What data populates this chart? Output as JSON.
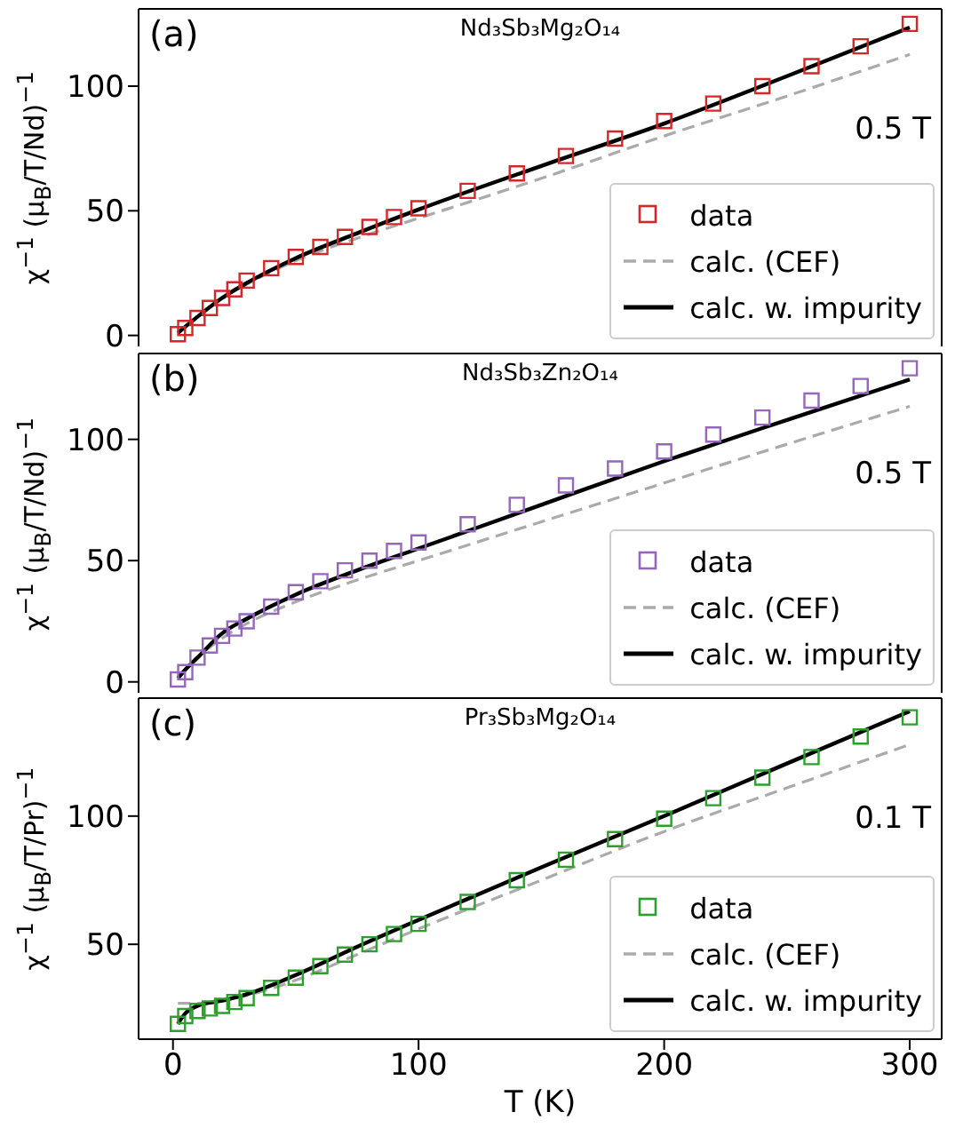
{
  "chart_data": [
    {
      "type": "scatter",
      "title": "Nd₃Sb₃Mg₂O₁₄",
      "ylabel": "χ$^{−1}$ (μ$_{B}$/T/Nd)$^{−1}$",
      "annotations": [
        "(a)",
        "0.5 T"
      ],
      "xlim": [
        -14,
        313
      ],
      "xticks": [
        0,
        100,
        200,
        300
      ],
      "ylim": [
        -4.4,
        131
      ],
      "yticks": [
        0,
        50,
        100
      ],
      "tick_labels": "y",
      "legend": "bottom right",
      "series": [
        {
          "name": "data",
          "marker": "square",
          "color": "#d62728",
          "x": [
            2,
            5,
            10,
            15,
            20,
            25,
            30,
            40,
            50,
            60,
            70,
            80,
            90,
            100,
            120,
            140,
            160,
            180,
            200,
            220,
            240,
            260,
            280,
            300
          ],
          "values": [
            0.5,
            3,
            7,
            11,
            15,
            18.5,
            22,
            27,
            31.5,
            35.5,
            39.5,
            43.5,
            47.5,
            51,
            58,
            65,
            72,
            79,
            86,
            93,
            100,
            108,
            116,
            125
          ]
        },
        {
          "name": "calc. (CEF)",
          "type": "line",
          "line_style": "dashed",
          "color": "#aaaaaa",
          "x": [
            2,
            5,
            10,
            20,
            30,
            50,
            75,
            100,
            150,
            200,
            250,
            300
          ],
          "values": [
            1,
            3.5,
            7.5,
            15,
            20.5,
            30,
            39,
            47,
            63,
            80,
            96,
            112.7
          ]
        },
        {
          "name": "calc. w. impurity",
          "type": "line",
          "line_style": "solid",
          "color": "#000000",
          "x": [
            2,
            5,
            10,
            20,
            30,
            50,
            75,
            100,
            150,
            200,
            250,
            300
          ],
          "values": [
            1,
            3.5,
            7.5,
            15,
            21,
            31,
            41,
            50.5,
            68,
            85,
            104,
            123.5
          ]
        }
      ]
    },
    {
      "type": "scatter",
      "title": "Nd₃Sb₃Zn₂O₁₄",
      "ylabel": "χ$^{−1}$ (μ$_{B}$/T/Nd)$^{−1}$",
      "annotations": [
        "(b)",
        "0.5 T"
      ],
      "xlim": [
        -14,
        313
      ],
      "xticks": [
        0,
        100,
        200,
        300
      ],
      "ylim": [
        -4.5,
        135.4
      ],
      "yticks": [
        0,
        50,
        100
      ],
      "tick_labels": "y",
      "legend": "bottom right",
      "series": [
        {
          "name": "data",
          "marker": "square",
          "color": "#9467bd",
          "x": [
            2,
            5,
            10,
            15,
            20,
            25,
            30,
            40,
            50,
            60,
            70,
            80,
            90,
            100,
            120,
            140,
            160,
            180,
            200,
            220,
            240,
            260,
            280,
            300
          ],
          "values": [
            1,
            4,
            10,
            15,
            19,
            22,
            25,
            31,
            37,
            41.5,
            46,
            50,
            54,
            57.5,
            65,
            73,
            81,
            88,
            95,
            102,
            109,
            116,
            122,
            129.3
          ]
        },
        {
          "name": "calc. (CEF)",
          "type": "line",
          "line_style": "dashed",
          "color": "#aaaaaa",
          "x": [
            2,
            5,
            10,
            20,
            30,
            50,
            75,
            100,
            150,
            200,
            250,
            300
          ],
          "values": [
            2,
            5,
            10,
            18,
            24,
            33,
            42,
            50,
            66,
            82,
            98,
            113.6
          ]
        },
        {
          "name": "calc. w. impurity",
          "type": "line",
          "line_style": "solid",
          "color": "#000000",
          "x": [
            2,
            5,
            10,
            20,
            30,
            50,
            75,
            100,
            150,
            200,
            250,
            300
          ],
          "values": [
            1.5,
            5,
            10,
            20,
            26,
            36,
            46,
            55,
            73,
            91,
            108,
            124.7
          ]
        }
      ]
    },
    {
      "type": "scatter",
      "title": "Pr₃Sb₃Mg₂O₁₄",
      "xlabel": "T (K)",
      "ylabel": "χ$^{−1}$ (μ$_{B}$/T/Pr)$^{−1}$",
      "annotations": [
        "(c)",
        "0.1 T"
      ],
      "xlim": [
        -14,
        313
      ],
      "xticks": [
        0,
        100,
        200,
        300
      ],
      "ylim": [
        13,
        146
      ],
      "yticks": [
        50,
        100
      ],
      "legend": "bottom right",
      "series": [
        {
          "name": "data",
          "marker": "square",
          "color": "#2ca02c",
          "x": [
            2,
            5,
            10,
            15,
            20,
            25,
            30,
            40,
            50,
            60,
            70,
            80,
            90,
            100,
            120,
            140,
            160,
            180,
            200,
            220,
            240,
            260,
            280,
            300
          ],
          "values": [
            19,
            22,
            24,
            25,
            26,
            27.5,
            29,
            33,
            37,
            41.5,
            46,
            50,
            54,
            58,
            66.5,
            75,
            83,
            91,
            99,
            107,
            115,
            123,
            131,
            138.5
          ]
        },
        {
          "name": "calc. (CEF)",
          "type": "line",
          "line_style": "dashed",
          "color": "#aaaaaa",
          "x": [
            2,
            5,
            10,
            20,
            30,
            50,
            75,
            100,
            150,
            200,
            250,
            300
          ],
          "values": [
            27,
            27,
            27,
            28,
            30,
            36,
            46,
            56,
            75,
            94,
            111,
            127.9
          ]
        },
        {
          "name": "calc. w. impurity",
          "type": "line",
          "line_style": "solid",
          "color": "#000000",
          "x": [
            2,
            5,
            10,
            20,
            30,
            50,
            75,
            100,
            150,
            200,
            250,
            300
          ],
          "values": [
            19,
            23,
            26,
            28,
            30.5,
            38,
            49,
            59.5,
            80,
            100,
            120.5,
            140.9
          ]
        }
      ]
    }
  ]
}
